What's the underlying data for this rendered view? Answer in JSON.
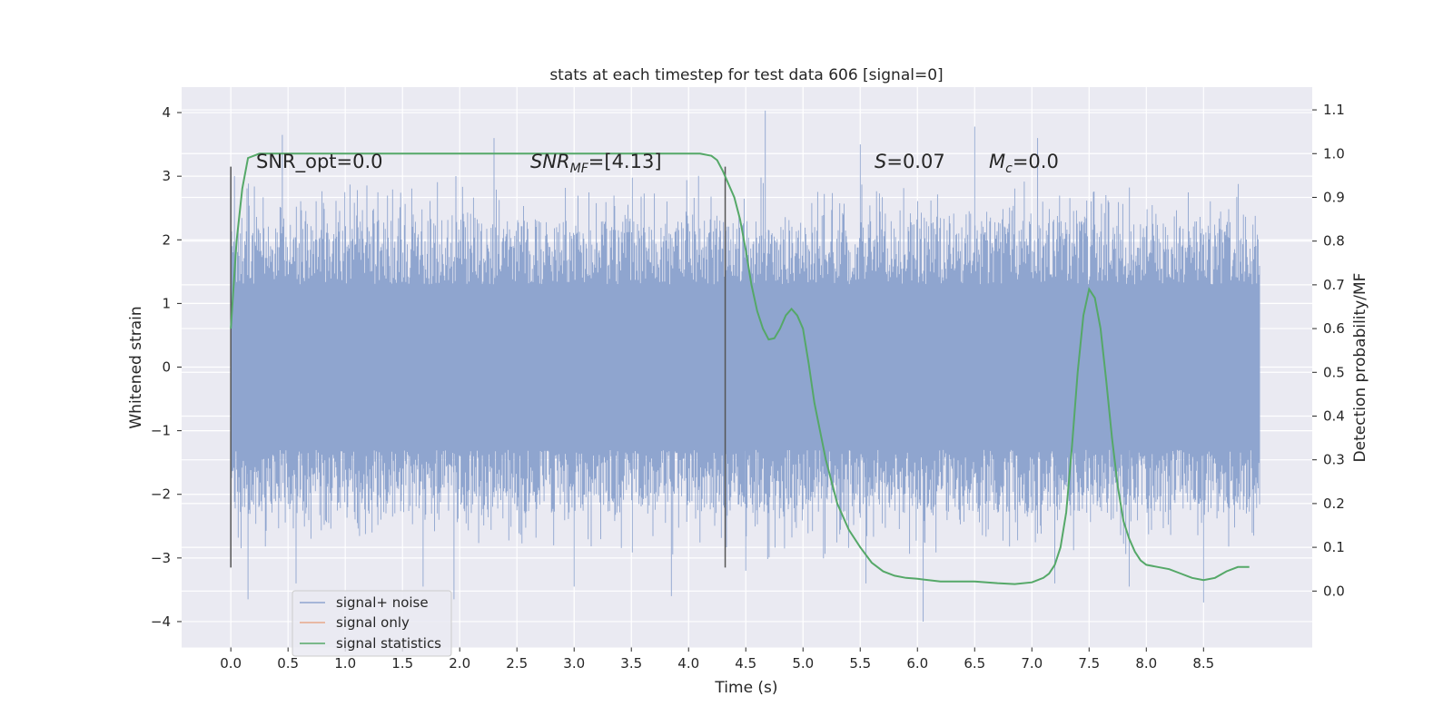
{
  "chart_data": {
    "type": "line",
    "title": "stats at each timestep for test data 606 [signal=0]",
    "xlabel": "Time (s)",
    "ylabel": "Whitened strain",
    "y2label": "Detection probability/MF",
    "xlim": [
      -0.43,
      9.45
    ],
    "ylim": [
      -4.4,
      4.4
    ],
    "y2lim": [
      -0.128,
      1.152
    ],
    "grid": true,
    "xticks": [
      "0.0",
      "0.5",
      "1.0",
      "1.5",
      "2.0",
      "2.5",
      "3.0",
      "3.5",
      "4.0",
      "4.5",
      "5.0",
      "5.5",
      "6.0",
      "6.5",
      "7.0",
      "7.5",
      "8.0",
      "8.5"
    ],
    "yticks": [
      "4",
      "3",
      "2",
      "1",
      "0",
      "−1",
      "−2",
      "−3",
      "−4"
    ],
    "y2ticks": [
      "1.1",
      "1.0",
      "0.9",
      "0.8",
      "0.7",
      "0.6",
      "0.5",
      "0.4",
      "0.3",
      "0.2",
      "0.1",
      "0.0"
    ],
    "annotations": {
      "snr_opt": "SNR_opt=0.0",
      "snr_mf_main": "SNR",
      "snr_mf_sub": "MF",
      "snr_mf_value": "=[4.13]",
      "s_sym": "S",
      "s_value": "=0.07",
      "mc_sym": "M",
      "mc_sub": "c",
      "mc_value": "=0.0"
    },
    "legend": {
      "position": "lower-left",
      "entries": [
        {
          "name": "signal+ noise",
          "color": "#8fa5cf"
        },
        {
          "name": "signal only",
          "color": "#e8a88a"
        },
        {
          "name": "signal statistics",
          "color": "#55a868"
        }
      ]
    },
    "markers": [
      {
        "x": 0.0,
        "y_range": [
          -3.15,
          3.15
        ]
      },
      {
        "x": 4.32,
        "y_range": [
          -3.15,
          3.15
        ]
      }
    ],
    "series": [
      {
        "name": "signal+ noise",
        "color": "#8fa5cf",
        "x_range": [
          0.0,
          8.99
        ],
        "band": [
          -1.3,
          1.3
        ],
        "envelope": [
          2.3,
          3.7
        ],
        "outliers": [
          {
            "x": 0.15,
            "y": -3.65
          },
          {
            "x": 0.45,
            "y": 3.65
          },
          {
            "x": 0.57,
            "y": -3.4
          },
          {
            "x": 1.68,
            "y": -3.45
          },
          {
            "x": 1.95,
            "y": -3.65
          },
          {
            "x": 2.3,
            "y": 3.6
          },
          {
            "x": 3.0,
            "y": -3.45
          },
          {
            "x": 3.85,
            "y": -3.6
          },
          {
            "x": 4.67,
            "y": 4.03
          },
          {
            "x": 4.5,
            "y": -3.2
          },
          {
            "x": 5.5,
            "y": 3.5
          },
          {
            "x": 5.55,
            "y": -3.4
          },
          {
            "x": 6.05,
            "y": -4.0
          },
          {
            "x": 6.5,
            "y": 3.78
          },
          {
            "x": 7.05,
            "y": 3.6
          },
          {
            "x": 7.2,
            "y": -3.4
          },
          {
            "x": 7.85,
            "y": -3.45
          },
          {
            "x": 8.5,
            "y": -3.7
          }
        ]
      },
      {
        "name": "signal statistics",
        "color": "#55a868",
        "x": [
          0.0,
          0.05,
          0.1,
          0.15,
          0.25,
          0.5,
          1.0,
          2.0,
          3.0,
          3.8,
          4.0,
          4.1,
          4.2,
          4.25,
          4.3,
          4.35,
          4.4,
          4.45,
          4.5,
          4.55,
          4.6,
          4.65,
          4.7,
          4.75,
          4.8,
          4.85,
          4.9,
          4.95,
          5.0,
          5.05,
          5.1,
          5.2,
          5.3,
          5.4,
          5.5,
          5.6,
          5.7,
          5.8,
          5.9,
          6.0,
          6.2,
          6.5,
          6.7,
          6.85,
          7.0,
          7.1,
          7.15,
          7.2,
          7.25,
          7.3,
          7.35,
          7.4,
          7.45,
          7.5,
          7.55,
          7.6,
          7.65,
          7.7,
          7.75,
          7.8,
          7.85,
          7.9,
          7.95,
          8.0,
          8.1,
          8.2,
          8.3,
          8.4,
          8.5,
          8.6,
          8.7,
          8.8,
          8.85,
          8.9
        ],
        "values": [
          0.6,
          0.8,
          0.92,
          0.99,
          1.0,
          1.0,
          1.0,
          1.0,
          1.0,
          1.0,
          1.0,
          1.0,
          0.995,
          0.985,
          0.96,
          0.93,
          0.9,
          0.85,
          0.78,
          0.7,
          0.64,
          0.6,
          0.575,
          0.578,
          0.6,
          0.63,
          0.645,
          0.63,
          0.6,
          0.52,
          0.43,
          0.3,
          0.2,
          0.14,
          0.1,
          0.065,
          0.045,
          0.035,
          0.03,
          0.028,
          0.022,
          0.022,
          0.018,
          0.016,
          0.02,
          0.03,
          0.04,
          0.06,
          0.1,
          0.18,
          0.33,
          0.5,
          0.63,
          0.69,
          0.67,
          0.6,
          0.48,
          0.35,
          0.24,
          0.16,
          0.12,
          0.09,
          0.07,
          0.06,
          0.055,
          0.05,
          0.04,
          0.03,
          0.025,
          0.03,
          0.045,
          0.055,
          0.055,
          0.055
        ]
      }
    ]
  }
}
